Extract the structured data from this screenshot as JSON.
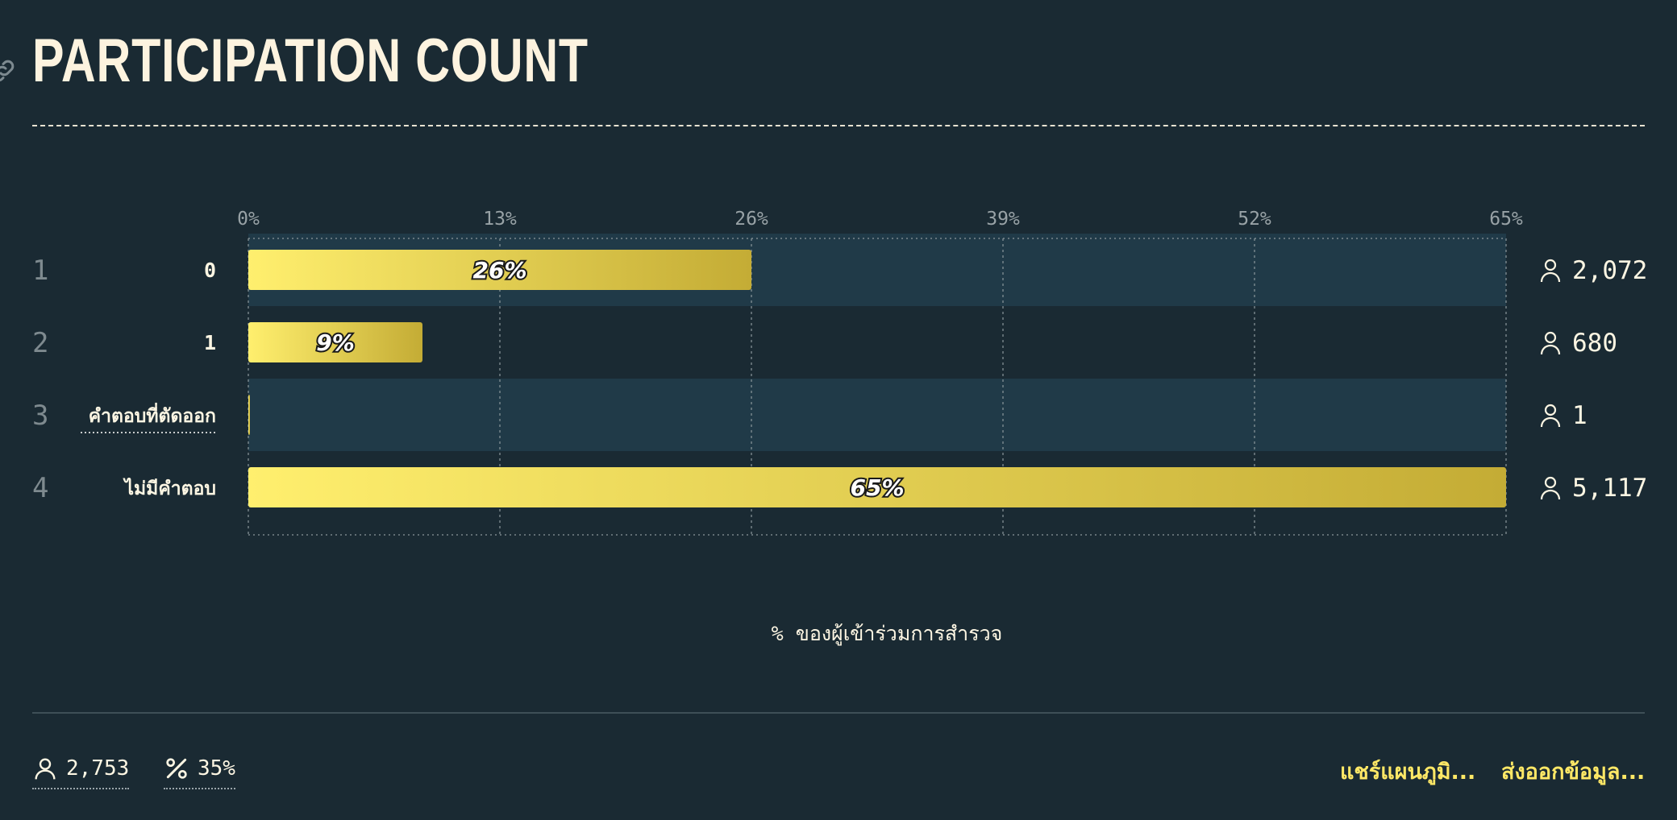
{
  "header": {
    "title": "PARTICIPATION COUNT"
  },
  "chart_data": {
    "type": "bar",
    "orientation": "horizontal",
    "title": "PARTICIPATION COUNT",
    "xlabel": "% ของผู้เข้าร่วมการสำรวจ",
    "xlim": [
      0,
      65
    ],
    "xticks": [
      "0%",
      "13%",
      "26%",
      "39%",
      "52%",
      "65%"
    ],
    "xtick_values": [
      0,
      13,
      26,
      39,
      52,
      65
    ],
    "grid": true,
    "rows": [
      {
        "rank": "1",
        "category": "0",
        "percent": 26,
        "percent_label": "26%",
        "count": "2,072"
      },
      {
        "rank": "2",
        "category": "1",
        "percent": 9,
        "percent_label": "9%",
        "count": "680"
      },
      {
        "rank": "3",
        "category": "คำตอบที่ตัดออก",
        "percent": 0,
        "percent_label": "",
        "count": "1"
      },
      {
        "rank": "4",
        "category": "ไม่มีคำตอบ",
        "percent": 65,
        "percent_label": "65%",
        "count": "5,117"
      }
    ]
  },
  "footer": {
    "respondents": "2,753",
    "percent": "35%",
    "share_label": "แชร์แผนภูมิ...",
    "export_label": "ส่งออกข้อมูล..."
  },
  "icons": {
    "link": "link-icon",
    "person": "person-icon",
    "percent": "percent-icon"
  },
  "colors": {
    "background": "#1a2a33",
    "bar_start": "#ffef6e",
    "bar_end": "#c4ac35",
    "accent": "#ffe866",
    "band": "#203a48"
  }
}
